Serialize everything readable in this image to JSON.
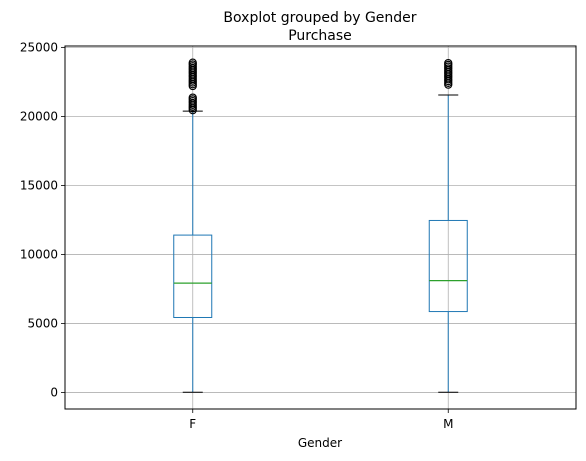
{
  "chart_data": {
    "type": "boxplot",
    "title": "Boxplot grouped by Gender",
    "subtitle": "Purchase",
    "xlabel": "Gender",
    "ylabel": "",
    "categories": [
      "F",
      "M"
    ],
    "ylim": [
      -1200,
      25100
    ],
    "yticks": [
      0,
      5000,
      10000,
      15000,
      20000,
      25000
    ],
    "grid": true,
    "boxes": [
      {
        "category": "F",
        "whisker_low": 12,
        "q1": 5430,
        "median": 7920,
        "q3": 11400,
        "whisker_high": 20380,
        "outlier_ranges": [
          [
            20450,
            21450
          ],
          [
            22200,
            23950
          ]
        ]
      },
      {
        "category": "M",
        "whisker_low": 12,
        "q1": 5860,
        "median": 8100,
        "q3": 12460,
        "whisker_high": 21550,
        "outlier_ranges": [
          [
            22300,
            23960
          ]
        ]
      }
    ],
    "colors": {
      "box": "#1f77b4",
      "median": "#2ca02c",
      "outlier": "#000000",
      "grid": "#b0b0b0",
      "axis": "#000000"
    }
  }
}
